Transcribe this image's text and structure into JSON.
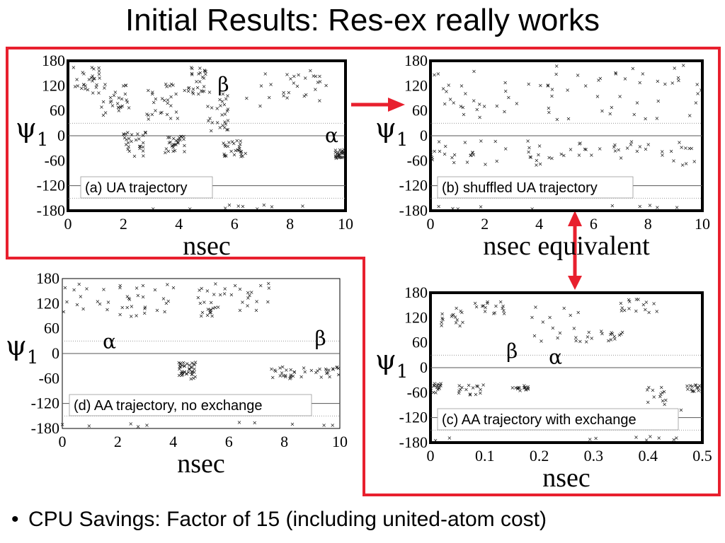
{
  "slide": {
    "title": "Initial Results: Res-ex really works",
    "bullet": "CPU Savings: Factor of 15 (including united-atom cost)",
    "accent_color": "#e8202e"
  },
  "chart_data": [
    {
      "id": "a",
      "type": "scatter",
      "label": "(a) UA trajectory",
      "ylabel": "ψ1",
      "xlabel": "nsec",
      "xlim": [
        0,
        10
      ],
      "ylim": [
        -180,
        180
      ],
      "xticks": [
        "0",
        "2",
        "4",
        "6",
        "8",
        "10"
      ],
      "yticks": [
        "180",
        "120",
        "60",
        "0",
        "-60",
        "-120",
        "-180"
      ],
      "annotations": [
        "β",
        "α"
      ],
      "segments": [
        {
          "x": [
            0.2,
            1.2
          ],
          "y": [
            100,
            170
          ]
        },
        {
          "x": [
            1.2,
            2.2
          ],
          "y": [
            50,
            130
          ]
        },
        {
          "x": [
            2.0,
            2.8
          ],
          "y": [
            -50,
            10
          ]
        },
        {
          "x": [
            2.8,
            4.0
          ],
          "y": [
            40,
            130
          ]
        },
        {
          "x": [
            3.5,
            4.2
          ],
          "y": [
            -40,
            0
          ]
        },
        {
          "x": [
            4.2,
            5.0
          ],
          "y": [
            100,
            170
          ]
        },
        {
          "x": [
            5.0,
            5.8
          ],
          "y": [
            10,
            110
          ]
        },
        {
          "x": [
            5.6,
            6.4
          ],
          "y": [
            -50,
            -10
          ]
        },
        {
          "x": [
            6.3,
            9.5
          ],
          "y": [
            70,
            160
          ]
        },
        {
          "x": [
            9.6,
            10.0
          ],
          "y": [
            -55,
            -30
          ]
        }
      ]
    },
    {
      "id": "b",
      "type": "scatter",
      "label": "(b) shuffled UA trajectory",
      "ylabel": "ψ1",
      "xlabel": "nsec equivalent",
      "xlim": [
        0,
        10
      ],
      "ylim": [
        -180,
        180
      ],
      "xticks": [
        "0",
        "2",
        "4",
        "6",
        "8",
        "10"
      ],
      "yticks": [
        "180",
        "120",
        "60",
        "0",
        "-60",
        "-120",
        "-180"
      ],
      "annotations": [],
      "segments": [
        {
          "x": [
            0.0,
            10.0
          ],
          "y": [
            40,
            170
          ]
        },
        {
          "x": [
            0.0,
            10.0
          ],
          "y": [
            -70,
            -10
          ]
        }
      ]
    },
    {
      "id": "c",
      "type": "scatter",
      "label": "(c) AA trajectory with exchange",
      "ylabel": "ψ1",
      "xlabel": "nsec",
      "xlim": [
        0,
        0.5
      ],
      "ylim": [
        -180,
        180
      ],
      "xticks": [
        "0",
        "0.1",
        "0.2",
        "0.3",
        "0.4",
        "0.5"
      ],
      "yticks": [
        "180",
        "120",
        "60",
        "0",
        "-60",
        "-120",
        "-180"
      ],
      "annotations": [
        "β",
        "α"
      ],
      "segments": [
        {
          "x": [
            0.02,
            0.06
          ],
          "y": [
            100,
            145
          ]
        },
        {
          "x": [
            0.08,
            0.14
          ],
          "y": [
            130,
            160
          ]
        },
        {
          "x": [
            0.18,
            0.28
          ],
          "y": [
            60,
            160
          ]
        },
        {
          "x": [
            0.28,
            0.36
          ],
          "y": [
            60,
            90
          ]
        },
        {
          "x": [
            0.35,
            0.42
          ],
          "y": [
            130,
            165
          ]
        },
        {
          "x": [
            0.0,
            0.02
          ],
          "y": [
            -60,
            -35
          ]
        },
        {
          "x": [
            0.05,
            0.1
          ],
          "y": [
            -65,
            -40
          ]
        },
        {
          "x": [
            0.15,
            0.18
          ],
          "y": [
            -55,
            -40
          ]
        },
        {
          "x": [
            0.39,
            0.47
          ],
          "y": [
            -110,
            -40
          ]
        },
        {
          "x": [
            0.47,
            0.5
          ],
          "y": [
            -60,
            -40
          ]
        }
      ]
    },
    {
      "id": "d",
      "type": "scatter",
      "label": "(d) AA trajectory, no exchange",
      "ylabel": "ψ1",
      "xlabel": "nsec",
      "xlim": [
        0,
        10
      ],
      "ylim": [
        -180,
        180
      ],
      "xticks": [
        "0",
        "2",
        "4",
        "6",
        "8",
        "10"
      ],
      "yticks": [
        "180",
        "120",
        "60",
        "0",
        "-60",
        "-120",
        "-180"
      ],
      "annotations": [
        "β",
        "α"
      ],
      "segments": [
        {
          "x": [
            0.0,
            4.2
          ],
          "y": [
            90,
            170
          ]
        },
        {
          "x": [
            4.2,
            4.8
          ],
          "y": [
            -60,
            -20
          ]
        },
        {
          "x": [
            4.8,
            7.5
          ],
          "y": [
            90,
            170
          ]
        },
        {
          "x": [
            7.5,
            10.0
          ],
          "y": [
            -60,
            -30
          ]
        }
      ]
    }
  ]
}
